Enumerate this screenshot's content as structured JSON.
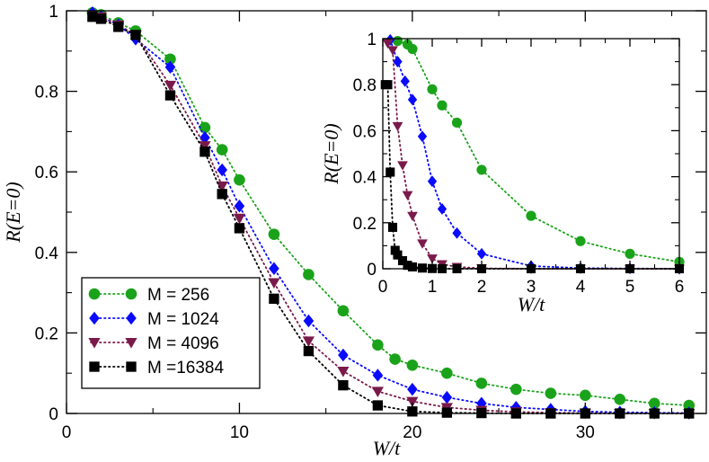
{
  "chart_data": [
    {
      "type": "scatter",
      "xlabel": "W/t",
      "ylabel": "R(E=0)",
      "xlim": [
        0,
        37
      ],
      "ylim": [
        0,
        1
      ],
      "xticks": [
        0,
        10,
        20,
        30
      ],
      "yticks": [
        0,
        0.2,
        0.4,
        0.6,
        0.8,
        1
      ],
      "ytick_labels": [
        "0",
        "0.2",
        "0.4",
        "0.6",
        "0.8",
        "1"
      ],
      "minor_xticks": [
        5,
        15,
        25,
        35
      ],
      "minor_yticks": [
        0.1,
        0.3,
        0.5,
        0.7,
        0.9
      ],
      "grid": false,
      "legend": "bottom-left",
      "series": [
        {
          "name": "M =  256",
          "color": "#1aa31a",
          "marker": "circle",
          "x": [
            1.5,
            2,
            3,
            4,
            6,
            8,
            9,
            10,
            12,
            14,
            16,
            18,
            19,
            20,
            22,
            24,
            26,
            28,
            30,
            32,
            34,
            36
          ],
          "y": [
            0.995,
            0.99,
            0.97,
            0.95,
            0.88,
            0.71,
            0.655,
            0.58,
            0.445,
            0.345,
            0.255,
            0.17,
            0.135,
            0.12,
            0.1,
            0.075,
            0.06,
            0.05,
            0.045,
            0.035,
            0.025,
            0.02
          ]
        },
        {
          "name": "M = 1024",
          "color": "#0a0aff",
          "marker": "diamond",
          "x": [
            1.5,
            2,
            3,
            4,
            6,
            8,
            9,
            10,
            12,
            14,
            16,
            18,
            20,
            22,
            24,
            26,
            28,
            30,
            32,
            34,
            36
          ],
          "y": [
            0.995,
            0.985,
            0.965,
            0.93,
            0.86,
            0.685,
            0.605,
            0.515,
            0.36,
            0.23,
            0.145,
            0.095,
            0.06,
            0.04,
            0.025,
            0.015,
            0.01,
            0.005,
            0.003,
            0.002,
            0.001
          ]
        },
        {
          "name": "M = 4096",
          "color": "#7a1a4a",
          "marker": "triangle-down",
          "x": [
            1.5,
            2,
            3,
            4,
            6,
            8,
            9,
            10,
            12,
            14,
            16,
            18,
            20,
            22,
            24,
            26,
            28,
            30,
            32,
            34,
            36
          ],
          "y": [
            0.99,
            0.985,
            0.965,
            0.94,
            0.815,
            0.665,
            0.565,
            0.485,
            0.325,
            0.18,
            0.105,
            0.055,
            0.03,
            0.015,
            0.008,
            0.004,
            0.002,
            0.001,
            0,
            0,
            0
          ]
        },
        {
          "name": "M =16384",
          "color": "#000000",
          "marker": "square",
          "x": [
            1.5,
            2,
            3,
            4,
            6,
            8,
            9,
            10,
            12,
            14,
            16,
            18,
            20,
            22,
            24,
            26,
            28,
            30,
            32,
            34,
            36
          ],
          "y": [
            0.985,
            0.98,
            0.96,
            0.94,
            0.79,
            0.65,
            0.545,
            0.46,
            0.285,
            0.155,
            0.07,
            0.02,
            0.005,
            0.002,
            0.001,
            0,
            0,
            0,
            0,
            0,
            0
          ]
        }
      ]
    },
    {
      "type": "scatter",
      "inset": true,
      "xlabel": "W/t",
      "ylabel": "R(E=0)",
      "xlim": [
        0,
        6
      ],
      "ylim": [
        0,
        1
      ],
      "xticks": [
        0,
        1,
        2,
        3,
        4,
        5,
        6
      ],
      "yticks": [
        0,
        0.2,
        0.4,
        0.6,
        0.8,
        1
      ],
      "ytick_labels": [
        "0",
        "0.2",
        "0.4",
        "0.6",
        "0.8",
        "1"
      ],
      "minor_xticks": [
        0.5,
        1.5,
        2.5,
        3.5,
        4.5,
        5.5
      ],
      "minor_yticks": [
        0.1,
        0.3,
        0.5,
        0.7,
        0.9
      ],
      "grid": false,
      "series": [
        {
          "name": "M =  256",
          "color": "#1aa31a",
          "marker": "circle",
          "x": [
            0.3,
            0.5,
            0.6,
            1.0,
            1.2,
            1.5,
            2.0,
            3.0,
            4.0,
            5.0,
            6.0
          ],
          "y": [
            0.99,
            0.975,
            0.955,
            0.78,
            0.71,
            0.635,
            0.43,
            0.23,
            0.12,
            0.065,
            0.03
          ]
        },
        {
          "name": "M = 1024",
          "color": "#0a0aff",
          "marker": "diamond",
          "x": [
            0.15,
            0.3,
            0.45,
            0.6,
            0.8,
            1.0,
            1.2,
            1.5,
            2.0,
            3.0,
            4.0,
            5.0,
            6.0
          ],
          "y": [
            0.995,
            0.9,
            0.815,
            0.735,
            0.575,
            0.38,
            0.26,
            0.155,
            0.065,
            0.012,
            0.003,
            0.001,
            0
          ]
        },
        {
          "name": "M = 4096",
          "color": "#7a1a4a",
          "marker": "triangle-down",
          "x": [
            0.1,
            0.2,
            0.3,
            0.4,
            0.5,
            0.6,
            0.8,
            1.0,
            1.2,
            1.5,
            2.0,
            3.0,
            4.0,
            5.0,
            6.0
          ],
          "y": [
            0.98,
            0.95,
            0.62,
            0.45,
            0.32,
            0.23,
            0.11,
            0.045,
            0.02,
            0.008,
            0.002,
            0,
            0,
            0,
            0
          ]
        },
        {
          "name": "M =16384",
          "color": "#000000",
          "marker": "square",
          "x": [
            0.05,
            0.1,
            0.15,
            0.2,
            0.25,
            0.3,
            0.4,
            0.5,
            0.6,
            0.8,
            1.0,
            1.2,
            1.5,
            2.0,
            3.0,
            4.0,
            5.0,
            6.0
          ],
          "y": [
            0.8,
            0.8,
            0.42,
            0.18,
            0.08,
            0.06,
            0.035,
            0.015,
            0.008,
            0.003,
            0.001,
            0,
            0,
            0,
            0,
            0,
            0,
            0
          ]
        }
      ]
    }
  ]
}
